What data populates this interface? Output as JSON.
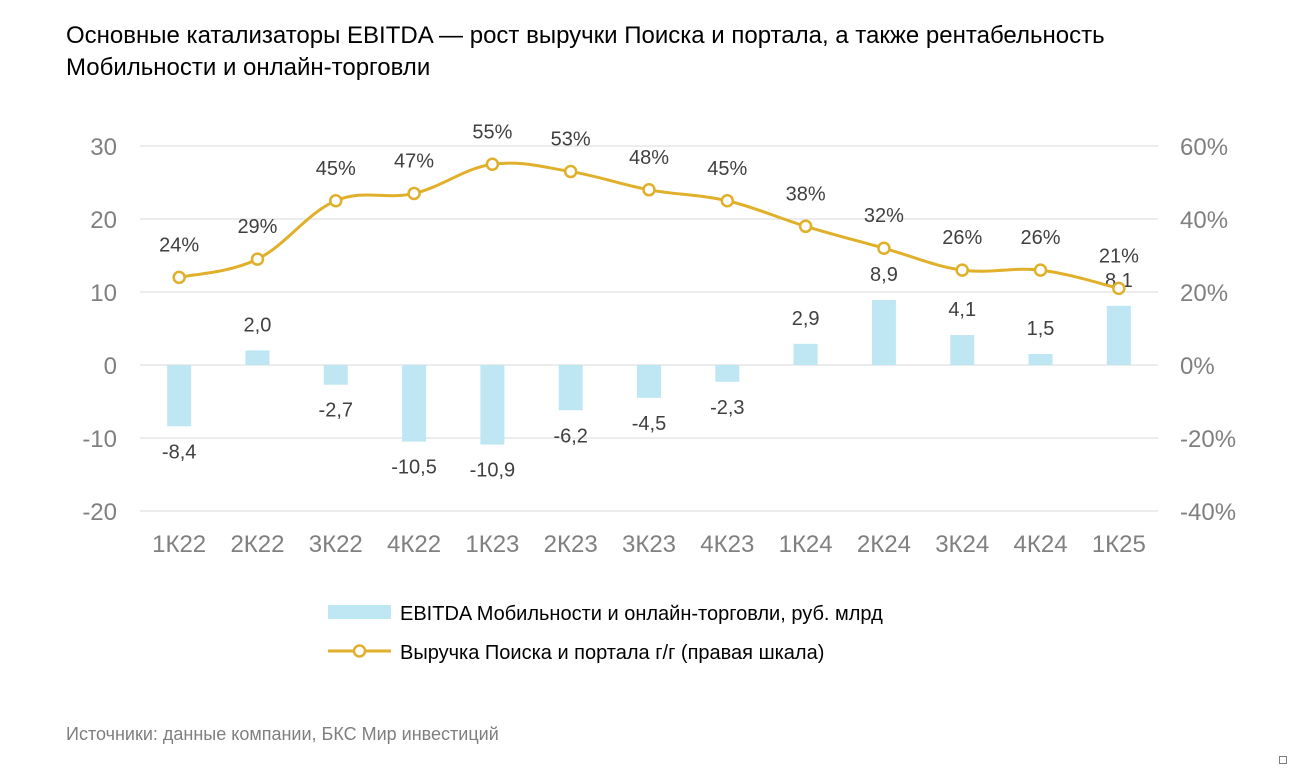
{
  "title": "Основные катализаторы EBITDA — рост выручки Поиска и портала, а также рентабельность\nМобильности и онлайн-торговли",
  "source": "Источники: данные компании, БКС Мир инвестиций",
  "colors": {
    "bar": "#bfe6f3",
    "line": "#e0b02a",
    "grid": "#d9d9d9"
  },
  "chart_data": {
    "type": "bar+line",
    "categories": [
      "1К22",
      "2К22",
      "3К22",
      "4К22",
      "1К23",
      "2К23",
      "3К23",
      "4К23",
      "1К24",
      "2К24",
      "3К24",
      "4К24",
      "1К25"
    ],
    "series": [
      {
        "name": "EBITDA Мобильности и онлайн-торговли, руб. млрд",
        "type": "bar",
        "axis": "left",
        "values": [
          -8.4,
          2.0,
          -2.7,
          -10.5,
          -10.9,
          -6.2,
          -4.5,
          -2.3,
          2.9,
          8.9,
          4.1,
          1.5,
          8.1
        ],
        "labels": [
          "-8,4",
          "2,0",
          "-2,7",
          "-10,5",
          "-10,9",
          "-6,2",
          "-4,5",
          "-2,3",
          "2,9",
          "8,9",
          "4,1",
          "1,5",
          "8,1"
        ]
      },
      {
        "name": "Выручка Поиска и портала г/г (правая шкала)",
        "type": "line",
        "axis": "right",
        "values": [
          24,
          29,
          45,
          47,
          55,
          53,
          48,
          45,
          38,
          32,
          26,
          26,
          21
        ],
        "labels": [
          "24%",
          "29%",
          "45%",
          "47%",
          "55%",
          "53%",
          "48%",
          "45%",
          "38%",
          "32%",
          "26%",
          "26%",
          "21%"
        ]
      }
    ],
    "left_axis": {
      "min": -20,
      "max": 30,
      "ticks": [
        30,
        20,
        10,
        0,
        -10,
        -20
      ],
      "tick_labels": [
        "30",
        "20",
        "10",
        "0",
        "-10",
        "-20"
      ]
    },
    "right_axis": {
      "min": -40,
      "max": 60,
      "ticks": [
        60,
        40,
        20,
        0,
        -20,
        -40
      ],
      "tick_labels": [
        "60%",
        "40%",
        "20%",
        "0%",
        "-20%",
        "-40%"
      ]
    },
    "grid": true,
    "legend_position": "bottom"
  }
}
